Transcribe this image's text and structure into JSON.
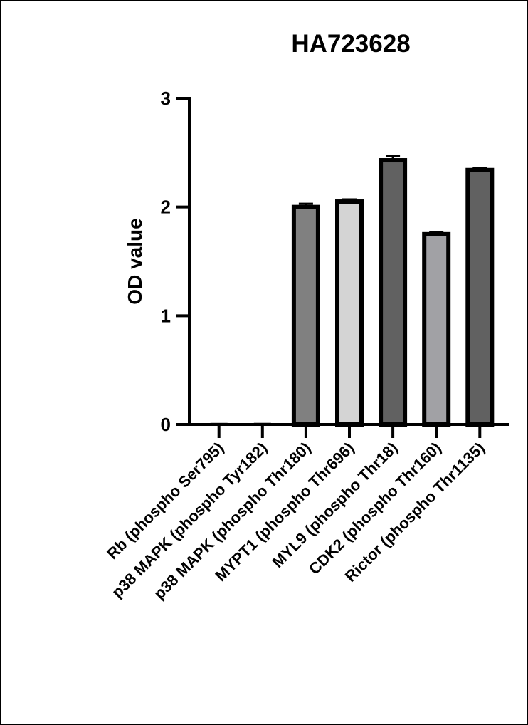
{
  "chart_data": {
    "type": "bar",
    "title": "HA723628",
    "xlabel": "",
    "ylabel": "OD value",
    "ylim": [
      0,
      3
    ],
    "yticks": [
      0,
      1,
      2,
      3
    ],
    "grid": false,
    "categories": [
      "Rb (phospho Ser795)",
      "p38 MAPK (phospho Tyr182)",
      "p38 MAPK (phospho Thr180)",
      "MYPT1 (phospho Thr696)",
      "MYL9 (phospho Thr18)",
      "CDK2 (phospho Thr160)",
      "Rictor (phospho Thr1135)"
    ],
    "values": [
      0.005,
      0.01,
      2.0,
      2.05,
      2.43,
      1.75,
      2.34
    ],
    "errors": [
      0,
      0,
      0.03,
      0.02,
      0.04,
      0.02,
      0.02
    ],
    "colors": [
      "#bdbdbd",
      "#bdbdbd",
      "#808080",
      "#d4d4d4",
      "#616161",
      "#a1a1a5",
      "#616161"
    ]
  }
}
